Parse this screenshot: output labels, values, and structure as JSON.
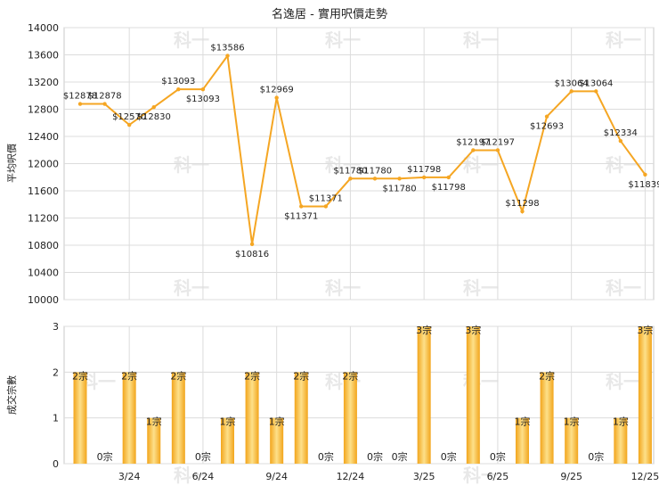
{
  "chart_data": [
    {
      "type": "line",
      "title": "名逸居 - 實用呎價走勢",
      "ylabel": "平均呎價",
      "ylim": [
        10000,
        14000
      ],
      "yticks": [
        "10000",
        "10400",
        "10800",
        "11200",
        "11600",
        "12000",
        "12400",
        "12800",
        "13200",
        "13600",
        "14000"
      ],
      "grid": true,
      "color": "#f5a623",
      "points": [
        {
          "label": "$12878",
          "value": 12878
        },
        {
          "label": "$12878",
          "value": 12878
        },
        {
          "label": "$12570",
          "value": 12570
        },
        {
          "label": "$12830",
          "value": 12830
        },
        {
          "label": "$13093",
          "value": 13093
        },
        {
          "label": "$13093",
          "value": 13093
        },
        {
          "label": "$13586",
          "value": 13586
        },
        {
          "label": "$10816",
          "value": 10816
        },
        {
          "label": "$12969",
          "value": 12969
        },
        {
          "label": "$11371",
          "value": 11371
        },
        {
          "label": "$11371",
          "value": 11371
        },
        {
          "label": "$11780",
          "value": 11780
        },
        {
          "label": "$11780",
          "value": 11780
        },
        {
          "label": "$11780",
          "value": 11780
        },
        {
          "label": "$11798",
          "value": 11798
        },
        {
          "label": "$11798",
          "value": 11798
        },
        {
          "label": "$12197",
          "value": 12197
        },
        {
          "label": "$12197",
          "value": 12197
        },
        {
          "label": "$11298",
          "value": 11298
        },
        {
          "label": "$12693",
          "value": 12693
        },
        {
          "label": "$13064",
          "value": 13064
        },
        {
          "label": "$13064",
          "value": 13064
        },
        {
          "label": "$12334",
          "value": 12334
        },
        {
          "label": "$11839",
          "value": 11839
        }
      ]
    },
    {
      "type": "bar",
      "ylabel": "成交宗數",
      "ylim": [
        0,
        3
      ],
      "yticks": [
        "0",
        "1",
        "2",
        "3"
      ],
      "xticks": [
        "3/24",
        "6/24",
        "9/24",
        "12/24",
        "3/25",
        "6/25",
        "9/25",
        "12/25"
      ],
      "grid": true,
      "color": "#f5a623",
      "values": [
        2,
        0,
        2,
        1,
        2,
        0,
        1,
        2,
        1,
        2,
        0,
        2,
        0,
        0,
        3,
        0,
        3,
        0,
        1,
        2,
        1,
        0,
        1,
        3
      ],
      "labels": [
        "2宗",
        "0宗",
        "2宗",
        "1宗",
        "2宗",
        "0宗",
        "1宗",
        "2宗",
        "1宗",
        "2宗",
        "0宗",
        "2宗",
        "0宗",
        "0宗",
        "3宗",
        "0宗",
        "3宗",
        "0宗",
        "1宗",
        "2宗",
        "1宗",
        "0宗",
        "1宗",
        "3宗"
      ]
    }
  ],
  "watermark": "科一"
}
